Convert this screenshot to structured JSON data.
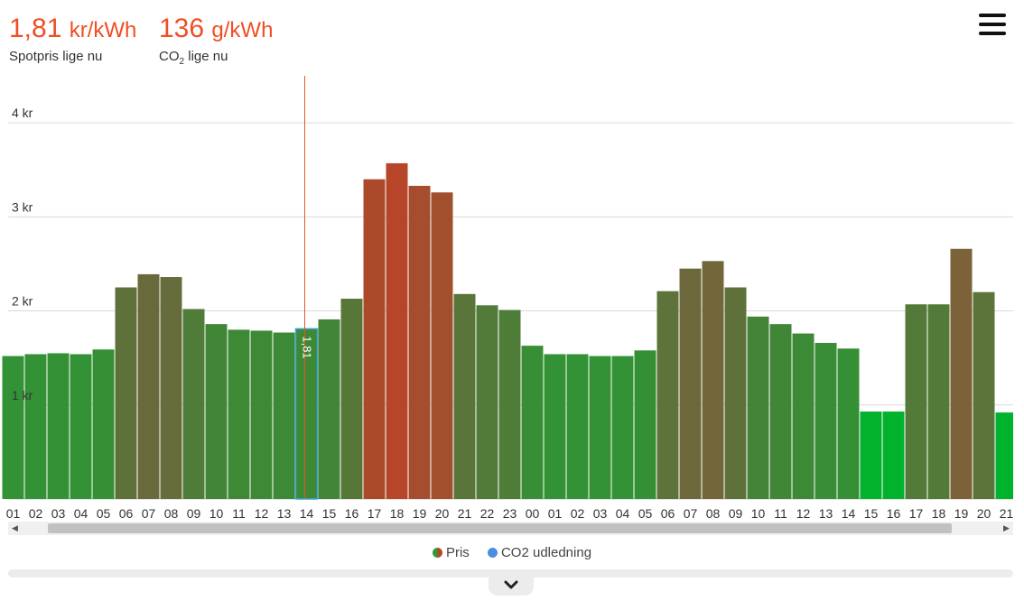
{
  "header": {
    "price_value": "1,81",
    "price_unit": "kr/kWh",
    "price_label": "Spotpris lige nu",
    "co2_value": "136",
    "co2_unit": "g/kWh",
    "co2_label_prefix": "CO",
    "co2_label_sub": "2",
    "co2_label_suffix": " lige nu"
  },
  "legend": {
    "price": "Pris",
    "co2": "CO2 udledning"
  },
  "colors": {
    "accent": "#f04e23",
    "low": "#00b32d",
    "mid": "#6a6a3c",
    "high": "#b84428",
    "selected_border": "#3aa5d6",
    "co2_dot": "#4c8de0"
  },
  "chart_data": {
    "type": "bar",
    "ylabel": "",
    "ylim": [
      0,
      4.5
    ],
    "yticks": [
      1,
      2,
      3,
      4
    ],
    "ytick_labels": [
      "1 kr",
      "2 kr",
      "3 kr",
      "4 kr"
    ],
    "categories": [
      "01",
      "02",
      "03",
      "04",
      "05",
      "06",
      "07",
      "08",
      "09",
      "10",
      "11",
      "12",
      "13",
      "14",
      "15",
      "16",
      "17",
      "18",
      "19",
      "20",
      "21",
      "22",
      "23",
      "00",
      "01",
      "02",
      "03",
      "04",
      "05",
      "06",
      "07",
      "08",
      "09",
      "10",
      "11",
      "12",
      "13",
      "14",
      "15",
      "16",
      "17",
      "18",
      "19",
      "20",
      "21"
    ],
    "series": [
      {
        "values": [
          1.52,
          1.54,
          1.55,
          1.54,
          1.59,
          2.25,
          2.39,
          2.36,
          2.02,
          1.86,
          1.8,
          1.79,
          1.77,
          1.81,
          1.91,
          2.13,
          3.4,
          3.57,
          3.33,
          3.26,
          2.18,
          2.06,
          2.01,
          1.63,
          1.54,
          1.54,
          1.52,
          1.52,
          1.58,
          2.21,
          2.45,
          2.53,
          2.25,
          1.94,
          1.86,
          1.76,
          1.66,
          1.6,
          0.93,
          0.93,
          2.07,
          2.07,
          2.66,
          2.2,
          0.92
        ]
      }
    ],
    "current_index": 13,
    "current_label": "1,81"
  }
}
